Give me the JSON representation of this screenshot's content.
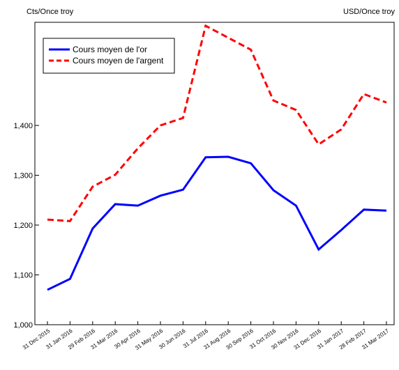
{
  "chart_data": {
    "type": "line",
    "y_label": "Cts/Once troy",
    "y2_label": "USD/Once troy",
    "categories": [
      "31 Dec 2015",
      "31 Jan 2016",
      "29 Feb 2016",
      "31 Mar 2016",
      "30 Apr 2016",
      "31 May 2016",
      "30 Jun 2016",
      "31 Jul 2016",
      "31 Aug 2016",
      "30 Sep 2016",
      "31 Oct 2016",
      "30 Nov 2016",
      "31 Dec 2016",
      "31 Jan 2017",
      "28 Feb 2017",
      "31 Mar 2017"
    ],
    "series": [
      {
        "name": "Cours moyen de l'or",
        "color": "#0000ff",
        "dash": "solid",
        "values": [
          1070,
          1092,
          1193,
          1242,
          1239,
          1259,
          1271,
          1336,
          1337,
          1324,
          1270,
          1239,
          1151,
          1190,
          1231,
          1229
        ]
      },
      {
        "name": "Cours moyen de l'argent",
        "color": "#ff0000",
        "dash": "dashed",
        "values": [
          1211,
          1208,
          1277,
          1301,
          1354,
          1400,
          1415,
          1600,
          1576,
          1552,
          1450,
          1431,
          1362,
          1392,
          1463,
          1446
        ]
      }
    ],
    "ylim": [
      1000,
      1607
    ],
    "yticks": [
      {
        "value": 1000,
        "label": "1,000"
      },
      {
        "value": 1100,
        "label": "1,100"
      },
      {
        "value": 1200,
        "label": "1,200"
      },
      {
        "value": 1300,
        "label": "1,300"
      },
      {
        "value": 1400,
        "label": "1,400"
      }
    ],
    "legend": "upper left"
  }
}
